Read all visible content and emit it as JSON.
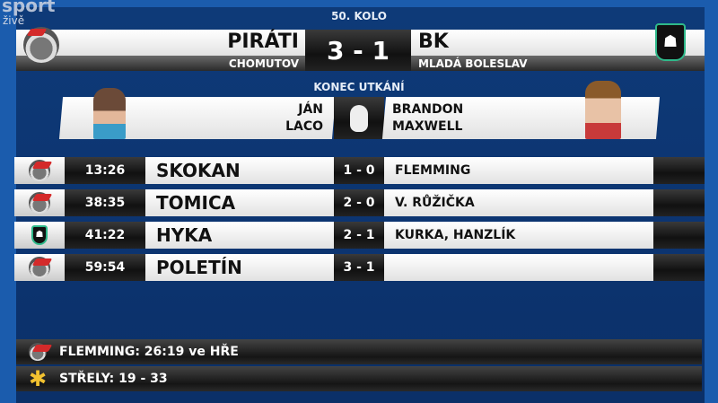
{
  "broadcast": {
    "channel": "sport",
    "live": "živě"
  },
  "round": "50. KOLO",
  "home": {
    "name": "PIRÁTI",
    "city": "CHOMUTOV",
    "logo": "pirati-logo"
  },
  "away": {
    "name": "BK",
    "city": "MLADÁ BOLESLAV",
    "logo": "bk-lion-logo"
  },
  "score": "3 - 1",
  "status": "KONEC UTKÁNÍ",
  "goalies": {
    "home": [
      "JÁN",
      "LACO"
    ],
    "away": [
      "BRANDON",
      "MAXWELL"
    ],
    "icon": "goalie-mask-icon"
  },
  "goals": [
    {
      "team": "home",
      "time": "13:26",
      "scorer": "SKOKAN",
      "score": "1 - 0",
      "assists": "FLEMMING"
    },
    {
      "team": "home",
      "time": "38:35",
      "scorer": "TOMICA",
      "score": "2 - 0",
      "assists": "V. RŮŽIČKA"
    },
    {
      "team": "away",
      "time": "41:22",
      "scorer": "HYKA",
      "score": "2 - 1",
      "assists": "KURKA, HANZLÍK"
    },
    {
      "team": "home",
      "time": "59:54",
      "scorer": "POLETÍN",
      "score": "3 - 1",
      "assists": ""
    }
  ],
  "info": [
    {
      "icon": "pirati-logo",
      "text": "FLEMMING: 26:19 ve HŘE"
    },
    {
      "icon": "star-icon",
      "text": "STŘELY: 19 - 33",
      "color": "#f2c230"
    }
  ]
}
